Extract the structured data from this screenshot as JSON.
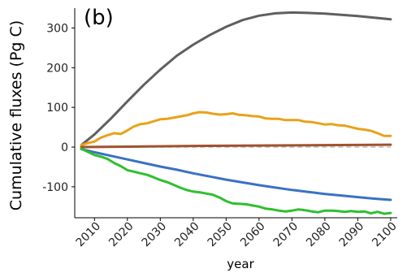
{
  "chart_data": {
    "type": "line",
    "panel_label": "(b)",
    "title": "",
    "xlabel": "year",
    "ylabel": "Cumulative fluxes (Pg C)",
    "xlim": [
      2004,
      2102
    ],
    "ylim": [
      -178,
      350
    ],
    "x_ticks": [
      2010,
      2020,
      2030,
      2040,
      2050,
      2060,
      2070,
      2080,
      2090,
      2100
    ],
    "x_tick_labels": [
      "2010",
      "2020",
      "2030",
      "2040",
      "2050",
      "2060",
      "2070",
      "2080",
      "2090",
      "2100"
    ],
    "y_ticks": [
      -100,
      0,
      100,
      200,
      300
    ],
    "y_tick_labels": [
      "-100",
      "0",
      "100",
      "200",
      "300"
    ],
    "grid": false,
    "legend": "none",
    "zero_line": {
      "y": 0,
      "color": "#bbbbbb",
      "style": "dashed"
    },
    "series": [
      {
        "color": "#5f5f5f",
        "x": [
          2006,
          2010,
          2015,
          2020,
          2025,
          2030,
          2035,
          2040,
          2045,
          2050,
          2055,
          2060,
          2065,
          2070,
          2075,
          2080,
          2085,
          2090,
          2095,
          2100
        ],
        "values": [
          5,
          32,
          72,
          115,
          157,
          195,
          230,
          258,
          282,
          303,
          320,
          331,
          337,
          339,
          338,
          336,
          333,
          330,
          326,
          322
        ]
      },
      {
        "color": "#e8a21a",
        "x": [
          2006,
          2008,
          2010,
          2012,
          2014,
          2016,
          2018,
          2020,
          2022,
          2024,
          2026,
          2028,
          2030,
          2032,
          2034,
          2036,
          2038,
          2040,
          2042,
          2044,
          2046,
          2048,
          2050,
          2052,
          2054,
          2056,
          2058,
          2060,
          2062,
          2064,
          2066,
          2068,
          2070,
          2072,
          2074,
          2076,
          2078,
          2080,
          2082,
          2084,
          2086,
          2088,
          2090,
          2092,
          2094,
          2096,
          2098,
          2100
        ],
        "values": [
          5,
          10,
          14,
          24,
          30,
          35,
          33,
          42,
          52,
          58,
          60,
          65,
          70,
          71,
          74,
          77,
          80,
          85,
          88,
          87,
          84,
          82,
          83,
          85,
          81,
          80,
          78,
          77,
          72,
          71,
          71,
          68,
          68,
          68,
          64,
          63,
          60,
          57,
          58,
          55,
          54,
          50,
          46,
          44,
          41,
          35,
          28,
          28
        ]
      },
      {
        "color": "#a0522d",
        "x": [
          2006,
          2020,
          2040,
          2060,
          2080,
          2100
        ],
        "values": [
          0,
          1,
          3,
          4,
          5,
          6
        ]
      },
      {
        "color": "#3a72c4",
        "x": [
          2006,
          2010,
          2015,
          2020,
          2025,
          2030,
          2035,
          2040,
          2045,
          2050,
          2055,
          2060,
          2065,
          2070,
          2075,
          2080,
          2085,
          2090,
          2095,
          2100
        ],
        "values": [
          -5,
          -13,
          -22,
          -31,
          -40,
          -49,
          -57,
          -66,
          -74,
          -82,
          -89,
          -96,
          -102,
          -108,
          -113,
          -118,
          -122,
          -126,
          -130,
          -133
        ]
      },
      {
        "color": "#2fbf2f",
        "x": [
          2006,
          2008,
          2010,
          2012,
          2014,
          2016,
          2018,
          2020,
          2022,
          2024,
          2026,
          2028,
          2030,
          2032,
          2034,
          2036,
          2038,
          2040,
          2042,
          2044,
          2046,
          2048,
          2050,
          2052,
          2054,
          2056,
          2058,
          2060,
          2062,
          2064,
          2066,
          2068,
          2070,
          2072,
          2074,
          2076,
          2078,
          2080,
          2082,
          2084,
          2086,
          2088,
          2090,
          2092,
          2094,
          2096,
          2098,
          2100
        ],
        "values": [
          -4,
          -12,
          -20,
          -24,
          -30,
          -40,
          -48,
          -58,
          -62,
          -66,
          -70,
          -76,
          -83,
          -88,
          -95,
          -102,
          -108,
          -112,
          -114,
          -117,
          -120,
          -127,
          -136,
          -142,
          -143,
          -144,
          -147,
          -150,
          -155,
          -157,
          -160,
          -162,
          -160,
          -157,
          -159,
          -162,
          -164,
          -160,
          -160,
          -161,
          -163,
          -161,
          -163,
          -162,
          -167,
          -163,
          -168,
          -166
        ]
      }
    ]
  }
}
